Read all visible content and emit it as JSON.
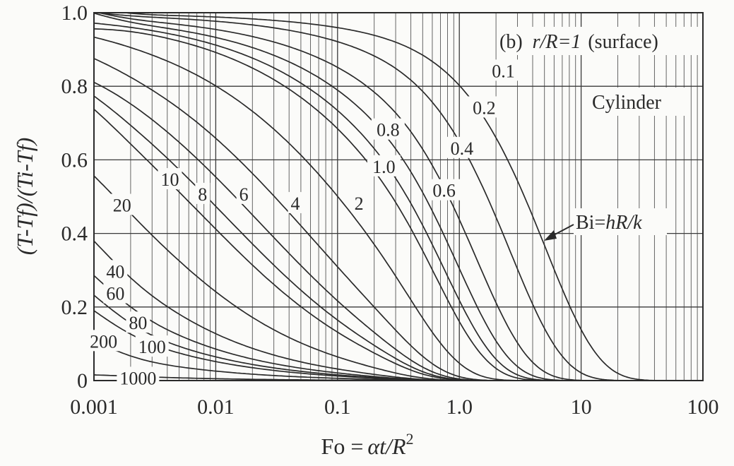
{
  "chart_data": {
    "type": "line",
    "panel_label": "(b)",
    "panel_condition_var": "r/R",
    "panel_condition_value": "=1",
    "panel_condition_note": "(surface)",
    "geometry_label": "Cylinder",
    "parameter_label_prefix": "Bi=",
    "parameter_label_formula": "hR/k",
    "xlabel_prefix": "Fo =",
    "xlabel_formula": "αt/R",
    "xlabel_exponent": "2",
    "ylabel": "(T-Tf)/(Ti-Tf)",
    "x_scale": "log",
    "xlim": [
      0.001,
      100
    ],
    "ylim": [
      0,
      1.0
    ],
    "x_tick_labels": [
      "0.001",
      "0.01",
      "0.1",
      "1.0",
      "10",
      "100"
    ],
    "x_tick_values": [
      0.001,
      0.01,
      0.1,
      1,
      10,
      100
    ],
    "y_tick_labels": [
      "0",
      "0.2",
      "0.4",
      "0.6",
      "0.8",
      "1.0"
    ],
    "y_tick_values": [
      0,
      0.2,
      0.4,
      0.6,
      0.8,
      1.0
    ],
    "grid": true,
    "series": [
      {
        "name": "0.1",
        "bi": 0.1
      },
      {
        "name": "0.2",
        "bi": 0.2
      },
      {
        "name": "0.4",
        "bi": 0.4
      },
      {
        "name": "0.6",
        "bi": 0.6
      },
      {
        "name": "0.8",
        "bi": 0.8
      },
      {
        "name": "1.0",
        "bi": 1.0
      },
      {
        "name": "2",
        "bi": 2
      },
      {
        "name": "4",
        "bi": 4
      },
      {
        "name": "6",
        "bi": 6
      },
      {
        "name": "8",
        "bi": 8
      },
      {
        "name": "10",
        "bi": 10
      },
      {
        "name": "20",
        "bi": 20
      },
      {
        "name": "40",
        "bi": 40
      },
      {
        "name": "60",
        "bi": 60
      },
      {
        "name": "80",
        "bi": 80
      },
      {
        "name": "100",
        "bi": 100
      },
      {
        "name": "200",
        "bi": 200
      },
      {
        "name": "1000",
        "bi": 1000
      }
    ],
    "series_label_positions": {
      "0.1": {
        "x": 2.3,
        "y": 0.84
      },
      "0.2": {
        "x": 1.6,
        "y": 0.74
      },
      "0.8": {
        "x": 0.26,
        "y": 0.68
      },
      "0.4": {
        "x": 1.05,
        "y": 0.63
      },
      "1.0": {
        "x": 0.24,
        "y": 0.58
      },
      "0.6": {
        "x": 0.75,
        "y": 0.515
      },
      "10": {
        "x": 0.0042,
        "y": 0.545
      },
      "8": {
        "x": 0.0078,
        "y": 0.505
      },
      "6": {
        "x": 0.017,
        "y": 0.505
      },
      "4": {
        "x": 0.045,
        "y": 0.48
      },
      "2": {
        "x": 0.15,
        "y": 0.48
      },
      "20": {
        "x": 0.0017,
        "y": 0.475
      },
      "40": {
        "x": 0.0015,
        "y": 0.295
      },
      "60": {
        "x": 0.0015,
        "y": 0.235
      },
      "80": {
        "x": 0.0023,
        "y": 0.155
      },
      "100": {
        "x": 0.003,
        "y": 0.09
      },
      "200": {
        "x": 0.0012,
        "y": 0.105
      },
      "1000": {
        "x": 0.0023,
        "y": 0.005
      }
    }
  }
}
